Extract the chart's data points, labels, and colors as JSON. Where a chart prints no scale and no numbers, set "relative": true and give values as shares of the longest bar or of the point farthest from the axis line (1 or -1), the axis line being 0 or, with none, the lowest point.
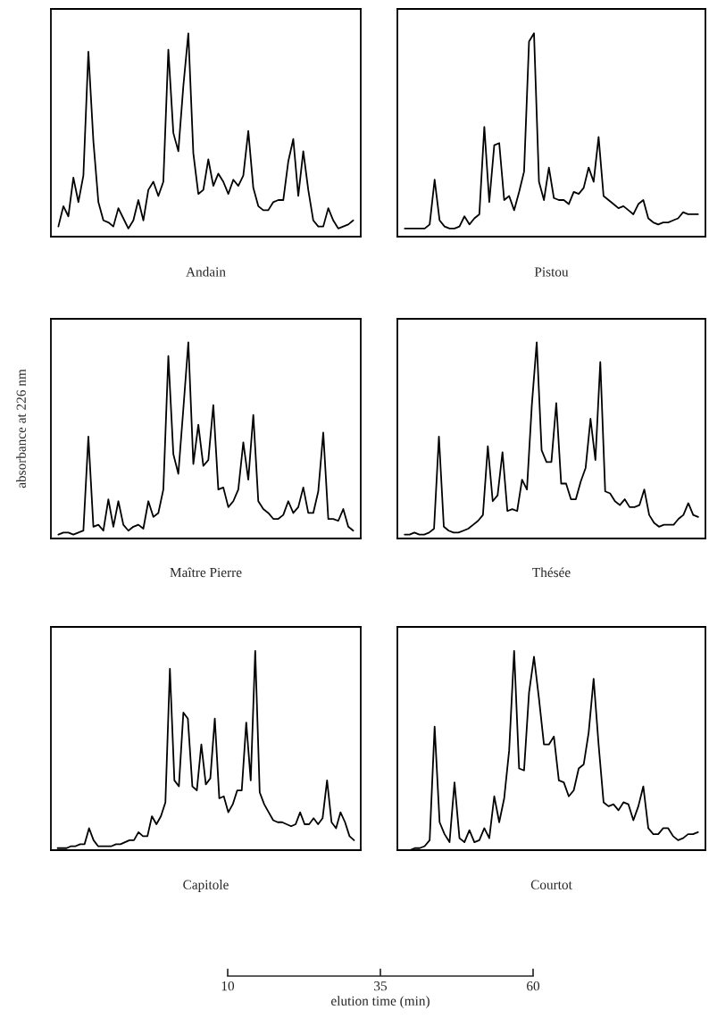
{
  "chart_data": [
    {
      "type": "line",
      "title": "Andain",
      "relative": true,
      "color": "#000000",
      "categories": [
        null,
        null,
        null,
        null,
        null,
        null,
        null,
        null,
        null,
        null,
        null,
        null,
        null,
        null,
        null,
        null,
        null,
        null,
        null,
        null,
        null,
        null,
        null,
        null,
        null,
        null,
        null,
        null,
        null,
        null,
        null,
        null,
        null,
        null,
        null,
        null,
        null,
        null,
        null,
        null,
        null,
        null,
        null,
        null,
        null,
        null,
        null,
        null,
        null,
        null,
        null,
        null,
        null,
        null,
        null,
        null,
        null,
        null,
        null,
        null
      ],
      "values": [
        0.05,
        0.15,
        0.1,
        0.29,
        0.17,
        0.3,
        0.91,
        0.47,
        0.17,
        0.08,
        0.07,
        0.05,
        0.14,
        0.09,
        0.04,
        0.08,
        0.18,
        0.08,
        0.23,
        0.27,
        0.2,
        0.27,
        0.92,
        0.51,
        0.42,
        0.74,
        1.0,
        0.41,
        0.21,
        0.23,
        0.38,
        0.25,
        0.31,
        0.27,
        0.21,
        0.28,
        0.25,
        0.3,
        0.52,
        0.24,
        0.15,
        0.13,
        0.13,
        0.17,
        0.18,
        0.18,
        0.37,
        0.48,
        0.2,
        0.42,
        0.23,
        0.08,
        0.05,
        0.05,
        0.14,
        0.08,
        0.04,
        0.05,
        0.06,
        0.08
      ]
    },
    {
      "type": "line",
      "title": "Pistou",
      "relative": true,
      "color": "#000000",
      "categories": [
        null,
        null,
        null,
        null,
        null,
        null,
        null,
        null,
        null,
        null,
        null,
        null,
        null,
        null,
        null,
        null,
        null,
        null,
        null,
        null,
        null,
        null,
        null,
        null,
        null,
        null,
        null,
        null,
        null,
        null,
        null,
        null,
        null,
        null,
        null,
        null,
        null,
        null,
        null,
        null,
        null,
        null,
        null,
        null,
        null,
        null,
        null,
        null,
        null,
        null,
        null,
        null,
        null,
        null,
        null,
        null,
        null,
        null,
        null,
        null
      ],
      "values": [
        0.04,
        0.04,
        0.04,
        0.04,
        0.04,
        0.06,
        0.28,
        0.08,
        0.05,
        0.04,
        0.04,
        0.05,
        0.1,
        0.06,
        0.09,
        0.11,
        0.54,
        0.17,
        0.45,
        0.46,
        0.18,
        0.2,
        0.13,
        0.22,
        0.32,
        0.96,
        1.0,
        0.27,
        0.18,
        0.34,
        0.19,
        0.18,
        0.18,
        0.16,
        0.22,
        0.21,
        0.24,
        0.34,
        0.27,
        0.49,
        0.2,
        0.18,
        0.16,
        0.14,
        0.15,
        0.13,
        0.11,
        0.16,
        0.18,
        0.09,
        0.07,
        0.06,
        0.07,
        0.07,
        0.08,
        0.09,
        0.12,
        0.11,
        0.11,
        0.11
      ]
    },
    {
      "type": "line",
      "title": "Maître Pierre",
      "ylabel": "absorbance at 226 nm",
      "relative": true,
      "color": "#000000",
      "categories": [
        null,
        null,
        null,
        null,
        null,
        null,
        null,
        null,
        null,
        null,
        null,
        null,
        null,
        null,
        null,
        null,
        null,
        null,
        null,
        null,
        null,
        null,
        null,
        null,
        null,
        null,
        null,
        null,
        null,
        null,
        null,
        null,
        null,
        null,
        null,
        null,
        null,
        null,
        null,
        null,
        null,
        null,
        null,
        null,
        null,
        null,
        null,
        null,
        null,
        null,
        null,
        null,
        null,
        null,
        null,
        null,
        null,
        null,
        null,
        null
      ],
      "values": [
        0.02,
        0.03,
        0.03,
        0.02,
        0.03,
        0.04,
        0.52,
        0.06,
        0.07,
        0.04,
        0.2,
        0.06,
        0.19,
        0.07,
        0.04,
        0.06,
        0.07,
        0.05,
        0.19,
        0.11,
        0.13,
        0.25,
        0.93,
        0.43,
        0.33,
        0.66,
        1.0,
        0.38,
        0.58,
        0.37,
        0.4,
        0.68,
        0.25,
        0.26,
        0.16,
        0.19,
        0.25,
        0.49,
        0.3,
        0.63,
        0.19,
        0.15,
        0.13,
        0.1,
        0.1,
        0.12,
        0.19,
        0.13,
        0.16,
        0.26,
        0.13,
        0.13,
        0.24,
        0.54,
        0.1,
        0.1,
        0.09,
        0.15,
        0.06,
        0.04
      ]
    },
    {
      "type": "line",
      "title": "Thésée",
      "relative": true,
      "color": "#000000",
      "categories": [
        null,
        null,
        null,
        null,
        null,
        null,
        null,
        null,
        null,
        null,
        null,
        null,
        null,
        null,
        null,
        null,
        null,
        null,
        null,
        null,
        null,
        null,
        null,
        null,
        null,
        null,
        null,
        null,
        null,
        null,
        null,
        null,
        null,
        null,
        null,
        null,
        null,
        null,
        null,
        null,
        null,
        null,
        null,
        null,
        null,
        null,
        null,
        null,
        null,
        null,
        null,
        null,
        null,
        null,
        null,
        null,
        null,
        null,
        null,
        null,
        null
      ],
      "values": [
        0.02,
        0.02,
        0.03,
        0.02,
        0.02,
        0.03,
        0.05,
        0.52,
        0.06,
        0.04,
        0.03,
        0.03,
        0.04,
        0.05,
        0.07,
        0.09,
        0.12,
        0.47,
        0.19,
        0.22,
        0.44,
        0.14,
        0.15,
        0.14,
        0.3,
        0.25,
        0.68,
        1.0,
        0.45,
        0.39,
        0.39,
        0.69,
        0.28,
        0.28,
        0.2,
        0.2,
        0.29,
        0.36,
        0.61,
        0.4,
        0.9,
        0.24,
        0.23,
        0.19,
        0.17,
        0.2,
        0.16,
        0.16,
        0.17,
        0.25,
        0.12,
        0.08,
        0.06,
        0.07,
        0.07,
        0.07,
        0.1,
        0.12,
        0.18,
        0.12,
        0.11
      ]
    },
    {
      "type": "line",
      "title": "Capitole",
      "relative": true,
      "color": "#000000",
      "categories": [
        null,
        null,
        null,
        null,
        null,
        null,
        null,
        null,
        null,
        null,
        null,
        null,
        null,
        null,
        null,
        null,
        null,
        null,
        null,
        null,
        null,
        null,
        null,
        null,
        null,
        null,
        null,
        null,
        null,
        null,
        null,
        null,
        null,
        null,
        null,
        null,
        null,
        null,
        null,
        null,
        null,
        null,
        null,
        null,
        null,
        null,
        null,
        null,
        null,
        null,
        null,
        null,
        null,
        null,
        null,
        null,
        null,
        null,
        null,
        null,
        null,
        null,
        null,
        null,
        null,
        null,
        null
      ],
      "values": [
        0.01,
        0.01,
        0.01,
        0.02,
        0.02,
        0.03,
        0.03,
        0.11,
        0.05,
        0.02,
        0.02,
        0.02,
        0.02,
        0.03,
        0.03,
        0.04,
        0.05,
        0.05,
        0.09,
        0.07,
        0.07,
        0.17,
        0.13,
        0.17,
        0.24,
        0.91,
        0.35,
        0.32,
        0.69,
        0.66,
        0.32,
        0.3,
        0.53,
        0.33,
        0.36,
        0.66,
        0.26,
        0.27,
        0.19,
        0.23,
        0.3,
        0.3,
        0.64,
        0.35,
        1.0,
        0.29,
        0.23,
        0.19,
        0.15,
        0.14,
        0.14,
        0.13,
        0.12,
        0.13,
        0.19,
        0.13,
        0.13,
        0.16,
        0.13,
        0.16,
        0.35,
        0.14,
        0.11,
        0.19,
        0.14,
        0.07,
        0.05
      ]
    },
    {
      "type": "line",
      "title": "Courtot",
      "relative": true,
      "color": "#000000",
      "categories": [
        null,
        null,
        null,
        null,
        null,
        null,
        null,
        null,
        null,
        null,
        null,
        null,
        null,
        null,
        null,
        null,
        null,
        null,
        null,
        null,
        null,
        null,
        null,
        null,
        null,
        null,
        null,
        null,
        null,
        null,
        null,
        null,
        null,
        null,
        null,
        null,
        null,
        null,
        null,
        null,
        null,
        null,
        null,
        null,
        null,
        null,
        null,
        null,
        null,
        null,
        null,
        null,
        null,
        null,
        null,
        null,
        null,
        null,
        null,
        null
      ],
      "values": [
        0.0,
        0.0,
        0.01,
        0.01,
        0.02,
        0.05,
        0.62,
        0.14,
        0.08,
        0.04,
        0.34,
        0.06,
        0.04,
        0.1,
        0.04,
        0.05,
        0.11,
        0.06,
        0.27,
        0.14,
        0.26,
        0.5,
        1.0,
        0.41,
        0.4,
        0.79,
        0.97,
        0.76,
        0.53,
        0.53,
        0.57,
        0.35,
        0.34,
        0.27,
        0.3,
        0.41,
        0.43,
        0.59,
        0.86,
        0.53,
        0.24,
        0.22,
        0.23,
        0.2,
        0.24,
        0.23,
        0.15,
        0.22,
        0.32,
        0.11,
        0.08,
        0.08,
        0.11,
        0.11,
        0.07,
        0.05,
        0.06,
        0.08,
        0.08,
        0.09
      ]
    },
    {
      "type": "other",
      "xlabel": "elution time (min)",
      "annotations": [
        "10",
        "35",
        "60"
      ]
    }
  ]
}
